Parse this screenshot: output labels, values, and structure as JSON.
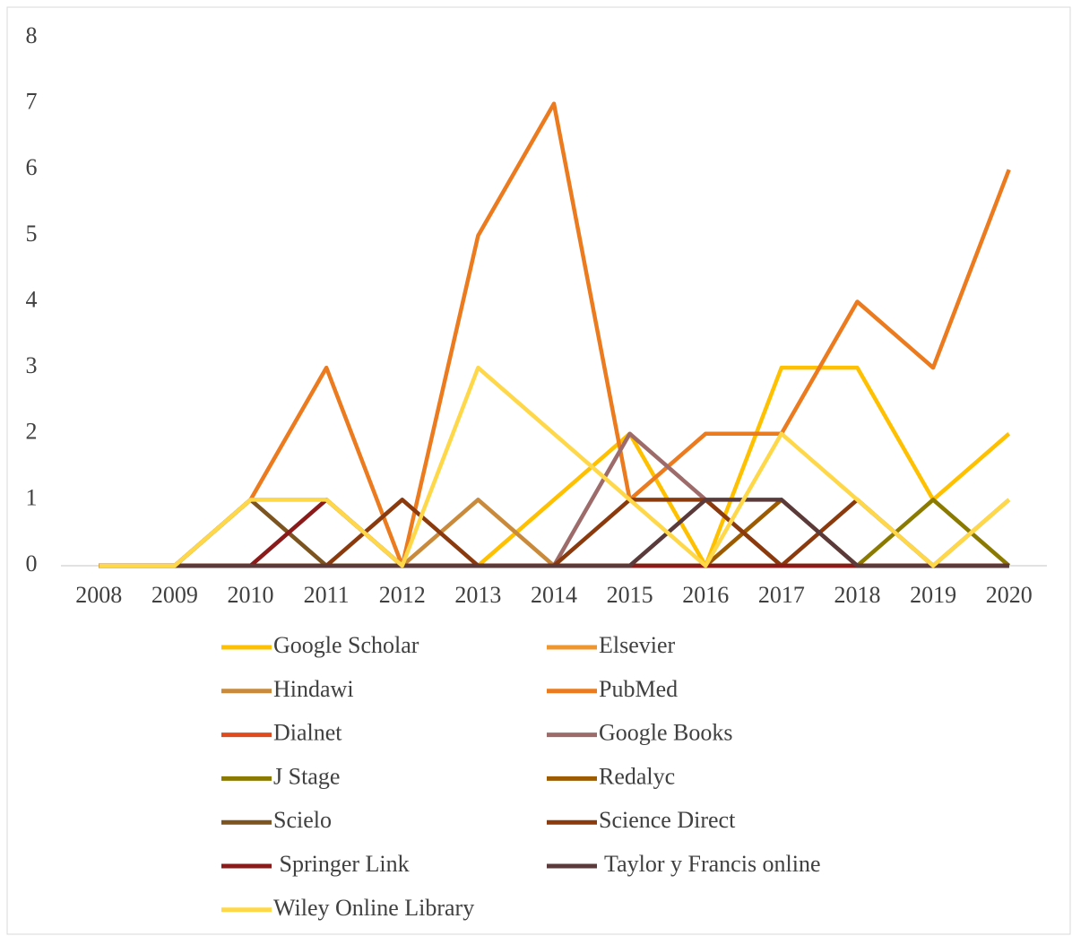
{
  "chart_data": {
    "type": "line",
    "categories": [
      "2008",
      "2009",
      "2010",
      "2011",
      "2012",
      "2013",
      "2014",
      "2015",
      "2016",
      "2017",
      "2018",
      "2019",
      "2020"
    ],
    "ylim": [
      0,
      8
    ],
    "yticks": [
      0,
      1,
      2,
      3,
      4,
      5,
      6,
      7,
      8
    ],
    "series": [
      {
        "name": "Google Scholar",
        "color": "#ffc000",
        "values": [
          0,
          0,
          1,
          1,
          0,
          0,
          1,
          2,
          0,
          3,
          3,
          1,
          2
        ]
      },
      {
        "name": "Elsevier",
        "color": "#f0962e",
        "values": [
          0,
          0,
          0,
          0,
          0,
          0,
          0,
          0,
          0,
          0,
          0,
          0,
          0
        ]
      },
      {
        "name": "Hindawi",
        "color": "#c98a3c",
        "values": [
          0,
          0,
          0,
          0,
          0,
          1,
          0,
          0,
          0,
          0,
          0,
          0,
          1
        ]
      },
      {
        "name": "PubMed",
        "color": "#ec7a1e",
        "values": [
          0,
          0,
          1,
          3,
          0,
          5,
          7,
          1,
          2,
          2,
          4,
          3,
          6
        ]
      },
      {
        "name": "Dialnet",
        "color": "#e04a1c",
        "values": [
          0,
          0,
          0,
          0,
          0,
          0,
          0,
          0,
          0,
          0,
          0,
          0,
          0
        ]
      },
      {
        "name": "Google Books",
        "color": "#9e6b6b",
        "values": [
          0,
          0,
          0,
          0,
          0,
          0,
          0,
          2,
          1,
          0,
          0,
          0,
          0
        ]
      },
      {
        "name": "J Stage",
        "color": "#8b7a00",
        "values": [
          0,
          0,
          0,
          0,
          0,
          0,
          0,
          0,
          0,
          0,
          0,
          1,
          0
        ]
      },
      {
        "name": "Redalyc",
        "color": "#9c5b00",
        "values": [
          0,
          0,
          0,
          0,
          0,
          0,
          0,
          0,
          0,
          1,
          0,
          0,
          0
        ]
      },
      {
        "name": "Scielo",
        "color": "#7b5420",
        "values": [
          0,
          0,
          1,
          0,
          0,
          0,
          0,
          0,
          0,
          0,
          0,
          0,
          0
        ]
      },
      {
        "name": "Science Direct",
        "color": "#8b3a0e",
        "values": [
          0,
          0,
          0,
          0,
          1,
          0,
          0,
          1,
          1,
          0,
          1,
          0,
          0
        ]
      },
      {
        "name": " Springer Link",
        "color": "#8b1a1a",
        "values": [
          0,
          0,
          0,
          1,
          0,
          0,
          0,
          0,
          0,
          0,
          0,
          0,
          0
        ]
      },
      {
        "name": " Taylor y Francis online",
        "color": "#5a3a3a",
        "values": [
          0,
          0,
          0,
          0,
          0,
          0,
          0,
          0,
          1,
          1,
          0,
          0,
          0
        ]
      },
      {
        "name": "Wiley Online Library",
        "color": "#ffd84a",
        "values": [
          0,
          0,
          1,
          1,
          0,
          3,
          2,
          1,
          0,
          2,
          1,
          0,
          1
        ]
      }
    ]
  }
}
